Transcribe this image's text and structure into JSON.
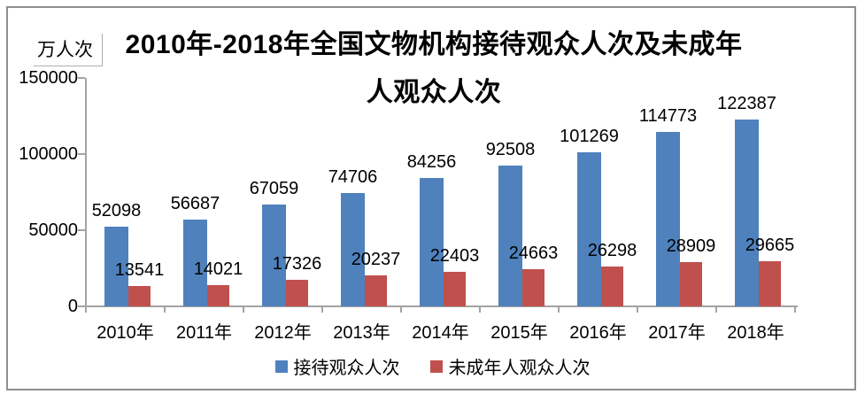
{
  "title": {
    "line1": "2010年-2018年全国文物机构接待观众人次及未成年",
    "line2": "人观众人次"
  },
  "unit_label": "万人次",
  "chart_data": {
    "type": "bar",
    "title": "2010年-2018年全国文物机构接待观众人次及未成年人观众人次",
    "ylabel": "万人次",
    "categories": [
      "2010年",
      "2011年",
      "2012年",
      "2013年",
      "2014年",
      "2015年",
      "2016年",
      "2017年",
      "2018年"
    ],
    "series": [
      {
        "name": "接待观众人次",
        "color": "#4F81BD",
        "values": [
          52098,
          56687,
          67059,
          74706,
          84256,
          92508,
          101269,
          114773,
          122387
        ]
      },
      {
        "name": "未成年人观众人次",
        "color": "#C0504D",
        "values": [
          13541,
          14021,
          17326,
          20237,
          22403,
          24663,
          26298,
          28909,
          29665
        ]
      }
    ],
    "ylim": [
      0,
      150000
    ],
    "yticks": [
      0,
      50000,
      100000,
      150000
    ],
    "grid": false,
    "data_labels": true,
    "legend_position": "bottom"
  }
}
